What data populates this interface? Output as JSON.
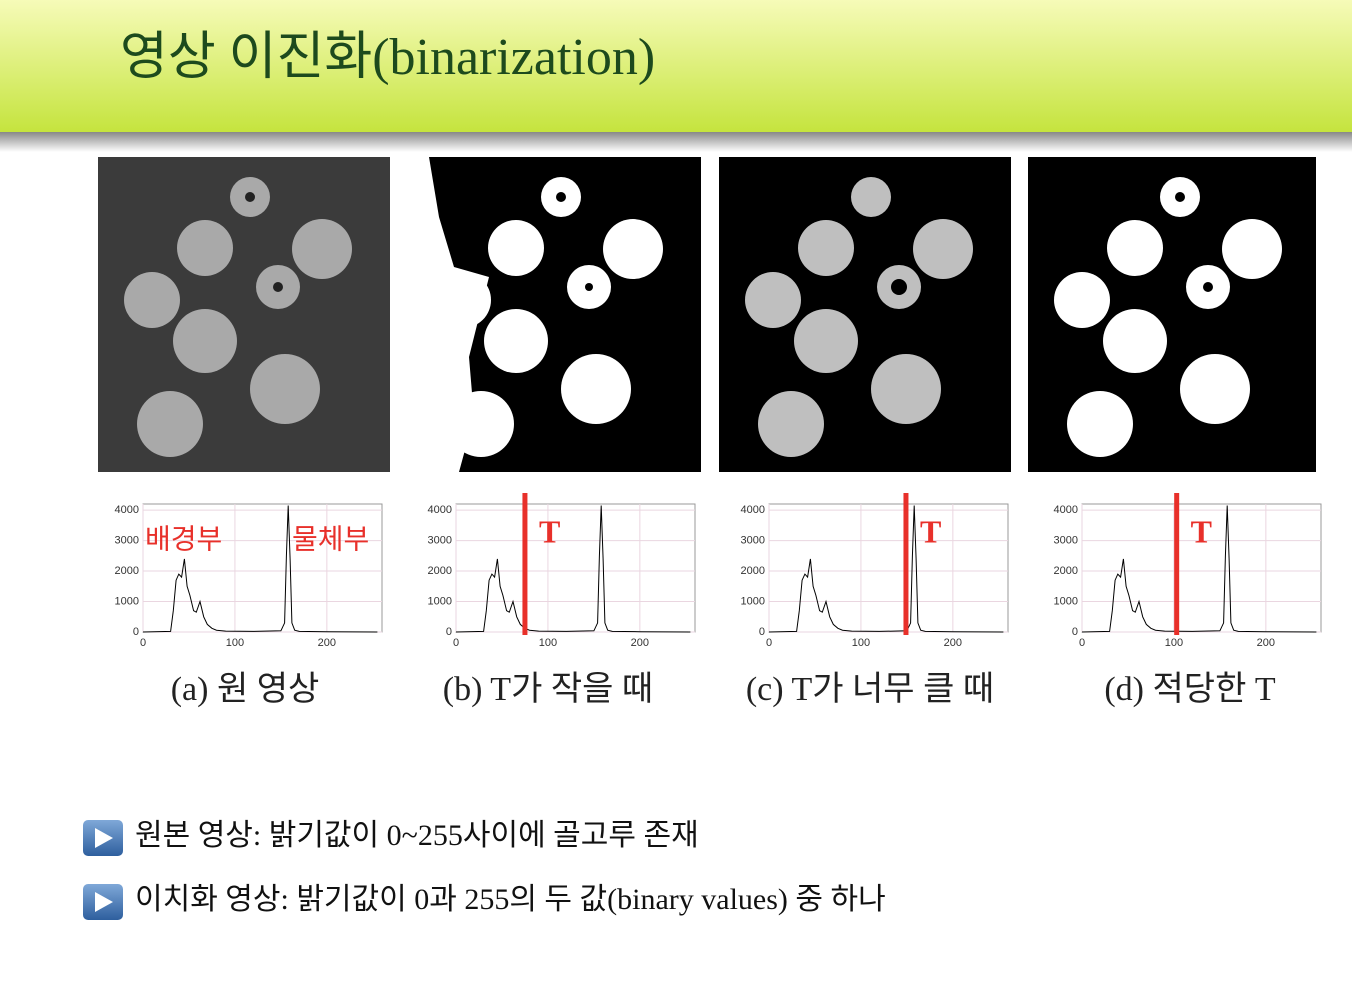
{
  "header": {
    "title": "영상 이진화(binarization)"
  },
  "panels": [
    {
      "caption": "(a) 원 영상",
      "labels": [
        "배경부",
        "물체부"
      ]
    },
    {
      "caption": "(b) T가 작을 때",
      "threshold_label": "T",
      "threshold": 75
    },
    {
      "caption": "(c) T가 너무 클 때",
      "threshold_label": "T",
      "threshold": 149
    },
    {
      "caption": "(d) 적당한 T",
      "threshold_label": "T",
      "threshold": 103
    }
  ],
  "chart_data": {
    "type": "line",
    "x": [
      0,
      30,
      33,
      36,
      39,
      42,
      45,
      48,
      51,
      55,
      58,
      62,
      66,
      70,
      75,
      80,
      90,
      120,
      150,
      154,
      156,
      158,
      160,
      162,
      165,
      170,
      200,
      255
    ],
    "values": [
      0,
      20,
      700,
      1700,
      1900,
      1800,
      2400,
      1500,
      1200,
      700,
      650,
      1000,
      500,
      250,
      120,
      60,
      30,
      20,
      40,
      300,
      2500,
      4150,
      2400,
      300,
      60,
      20,
      10,
      0
    ],
    "color": "#000000",
    "xlim": [
      0,
      260
    ],
    "ylim": [
      0,
      4200
    ],
    "xticks": [
      0,
      100,
      200
    ],
    "yticks": [
      0,
      1000,
      2000,
      3000,
      4000
    ],
    "grid": true
  },
  "bullets": [
    "원본 영상:  밝기값이 0~255사이에 골고루 존재",
    "이치화 영상: 밝기값이 0과 255의 두 값(binary values) 중 하나"
  ]
}
